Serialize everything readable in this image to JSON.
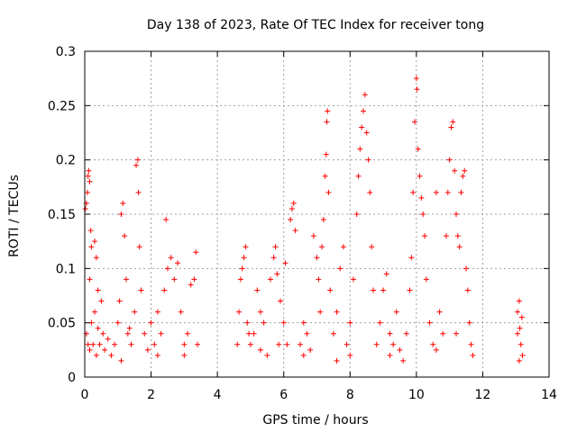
{
  "chart_data": {
    "type": "scatter",
    "title": "Day 138 of 2023, Rate Of TEC Index for receiver tong",
    "xlabel": "GPS time / hours",
    "ylabel": "ROTI / TECUs",
    "xlim": [
      0,
      14
    ],
    "ylim": [
      0,
      0.3
    ],
    "xticks": [
      0,
      2,
      4,
      6,
      8,
      10,
      12,
      14
    ],
    "xtick_labels": [
      "0",
      "2",
      "4",
      "6",
      "8",
      "10",
      "12",
      "14"
    ],
    "yticks": [
      0,
      0.05,
      0.1,
      0.15,
      0.2,
      0.25,
      0.3
    ],
    "ytick_labels": [
      "0",
      "0.05",
      "0.1",
      "0.15",
      "0.2",
      "0.25",
      "0.3"
    ],
    "grid": true,
    "marker": "+",
    "color": "#ff0000",
    "series": [
      {
        "points": [
          [
            0.02,
            0.155
          ],
          [
            0.05,
            0.16
          ],
          [
            0.08,
            0.17
          ],
          [
            0.1,
            0.185
          ],
          [
            0.12,
            0.19
          ],
          [
            0.15,
            0.18
          ],
          [
            0.18,
            0.135
          ],
          [
            0.2,
            0.12
          ],
          [
            0.05,
            0.04
          ],
          [
            0.1,
            0.03
          ],
          [
            0.15,
            0.025
          ],
          [
            0.2,
            0.05
          ],
          [
            0.25,
            0.03
          ],
          [
            0.3,
            0.06
          ],
          [
            0.35,
            0.02
          ],
          [
            0.4,
            0.045
          ],
          [
            0.45,
            0.03
          ],
          [
            0.5,
            0.07
          ],
          [
            0.55,
            0.04
          ],
          [
            0.6,
            0.025
          ],
          [
            0.3,
            0.125
          ],
          [
            0.35,
            0.11
          ],
          [
            0.15,
            0.09
          ],
          [
            0.4,
            0.08
          ],
          [
            0.9,
            0.03
          ],
          [
            1.0,
            0.05
          ],
          [
            1.05,
            0.07
          ],
          [
            1.1,
            0.15
          ],
          [
            1.15,
            0.16
          ],
          [
            1.2,
            0.13
          ],
          [
            1.25,
            0.09
          ],
          [
            1.3,
            0.04
          ],
          [
            1.4,
            0.03
          ],
          [
            1.5,
            0.06
          ],
          [
            1.55,
            0.195
          ],
          [
            1.6,
            0.2
          ],
          [
            1.62,
            0.17
          ],
          [
            1.65,
            0.12
          ],
          [
            1.7,
            0.08
          ],
          [
            1.8,
            0.04
          ],
          [
            1.9,
            0.025
          ],
          [
            2.0,
            0.05
          ],
          [
            2.1,
            0.03
          ],
          [
            2.2,
            0.06
          ],
          [
            2.3,
            0.04
          ],
          [
            2.4,
            0.08
          ],
          [
            2.45,
            0.145
          ],
          [
            2.5,
            0.1
          ],
          [
            2.6,
            0.11
          ],
          [
            2.7,
            0.09
          ],
          [
            2.8,
            0.105
          ],
          [
            2.9,
            0.06
          ],
          [
            3.0,
            0.03
          ],
          [
            3.1,
            0.04
          ],
          [
            3.2,
            0.085
          ],
          [
            3.3,
            0.09
          ],
          [
            3.35,
            0.115
          ],
          [
            3.4,
            0.03
          ],
          [
            2.2,
            0.02
          ],
          [
            1.1,
            0.015
          ],
          [
            0.8,
            0.02
          ],
          [
            3.0,
            0.02
          ],
          [
            0.7,
            0.035
          ],
          [
            1.35,
            0.045
          ],
          [
            4.6,
            0.03
          ],
          [
            4.65,
            0.06
          ],
          [
            4.7,
            0.09
          ],
          [
            4.75,
            0.1
          ],
          [
            4.8,
            0.11
          ],
          [
            4.85,
            0.12
          ],
          [
            4.9,
            0.05
          ],
          [
            5.0,
            0.03
          ],
          [
            5.1,
            0.04
          ],
          [
            5.2,
            0.08
          ],
          [
            5.3,
            0.06
          ],
          [
            5.4,
            0.05
          ],
          [
            5.5,
            0.02
          ],
          [
            5.6,
            0.09
          ],
          [
            5.7,
            0.11
          ],
          [
            5.75,
            0.12
          ],
          [
            5.8,
            0.095
          ],
          [
            5.9,
            0.07
          ],
          [
            6.0,
            0.05
          ],
          [
            6.05,
            0.105
          ],
          [
            6.1,
            0.03
          ],
          [
            5.85,
            0.03
          ],
          [
            5.3,
            0.025
          ],
          [
            4.95,
            0.04
          ],
          [
            6.2,
            0.145
          ],
          [
            6.25,
            0.155
          ],
          [
            6.3,
            0.16
          ],
          [
            6.35,
            0.135
          ],
          [
            6.5,
            0.03
          ],
          [
            6.6,
            0.05
          ],
          [
            6.7,
            0.04
          ],
          [
            6.8,
            0.025
          ],
          [
            6.9,
            0.13
          ],
          [
            7.0,
            0.11
          ],
          [
            7.05,
            0.09
          ],
          [
            7.1,
            0.06
          ],
          [
            7.15,
            0.12
          ],
          [
            7.2,
            0.145
          ],
          [
            7.25,
            0.185
          ],
          [
            7.28,
            0.205
          ],
          [
            7.3,
            0.235
          ],
          [
            7.32,
            0.245
          ],
          [
            7.35,
            0.17
          ],
          [
            7.4,
            0.08
          ],
          [
            7.5,
            0.04
          ],
          [
            7.6,
            0.06
          ],
          [
            7.7,
            0.1
          ],
          [
            7.8,
            0.12
          ],
          [
            7.9,
            0.03
          ],
          [
            8.0,
            0.05
          ],
          [
            8.1,
            0.09
          ],
          [
            8.2,
            0.15
          ],
          [
            8.25,
            0.185
          ],
          [
            8.3,
            0.21
          ],
          [
            8.35,
            0.23
          ],
          [
            8.4,
            0.245
          ],
          [
            8.45,
            0.26
          ],
          [
            8.5,
            0.225
          ],
          [
            8.55,
            0.2
          ],
          [
            8.6,
            0.17
          ],
          [
            8.65,
            0.12
          ],
          [
            8.7,
            0.08
          ],
          [
            8.8,
            0.03
          ],
          [
            8.9,
            0.05
          ],
          [
            9.0,
            0.08
          ],
          [
            9.1,
            0.095
          ],
          [
            9.2,
            0.04
          ],
          [
            9.3,
            0.03
          ],
          [
            9.4,
            0.06
          ],
          [
            9.5,
            0.025
          ],
          [
            9.6,
            0.015
          ],
          [
            9.7,
            0.04
          ],
          [
            9.8,
            0.08
          ],
          [
            9.85,
            0.11
          ],
          [
            9.9,
            0.17
          ],
          [
            9.95,
            0.235
          ],
          [
            10.0,
            0.275
          ],
          [
            10.02,
            0.265
          ],
          [
            10.05,
            0.21
          ],
          [
            10.1,
            0.185
          ],
          [
            10.15,
            0.165
          ],
          [
            10.2,
            0.15
          ],
          [
            10.25,
            0.13
          ],
          [
            10.3,
            0.09
          ],
          [
            10.4,
            0.05
          ],
          [
            10.5,
            0.03
          ],
          [
            10.6,
            0.17
          ],
          [
            10.7,
            0.06
          ],
          [
            10.8,
            0.04
          ],
          [
            10.9,
            0.13
          ],
          [
            10.95,
            0.17
          ],
          [
            11.0,
            0.2
          ],
          [
            11.05,
            0.23
          ],
          [
            11.1,
            0.235
          ],
          [
            11.15,
            0.19
          ],
          [
            11.2,
            0.15
          ],
          [
            11.25,
            0.13
          ],
          [
            11.3,
            0.12
          ],
          [
            11.35,
            0.17
          ],
          [
            11.4,
            0.185
          ],
          [
            11.45,
            0.19
          ],
          [
            11.5,
            0.1
          ],
          [
            11.55,
            0.08
          ],
          [
            11.6,
            0.05
          ],
          [
            11.65,
            0.03
          ],
          [
            11.7,
            0.02
          ],
          [
            11.2,
            0.04
          ],
          [
            10.6,
            0.025
          ],
          [
            9.2,
            0.02
          ],
          [
            8.0,
            0.02
          ],
          [
            7.6,
            0.015
          ],
          [
            6.6,
            0.02
          ],
          [
            13.05,
            0.06
          ],
          [
            13.1,
            0.07
          ],
          [
            13.12,
            0.045
          ],
          [
            13.15,
            0.03
          ],
          [
            13.2,
            0.02
          ],
          [
            13.1,
            0.015
          ],
          [
            13.05,
            0.04
          ],
          [
            13.18,
            0.055
          ]
        ]
      }
    ]
  }
}
